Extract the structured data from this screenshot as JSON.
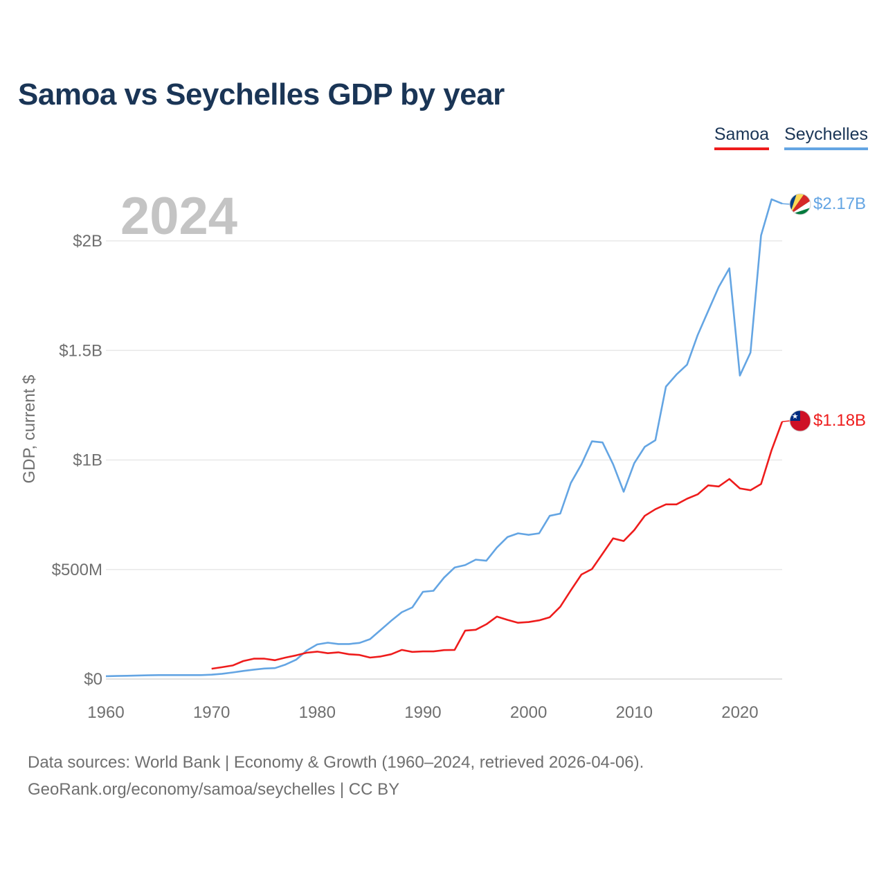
{
  "title": "Samoa vs Seychelles GDP by year",
  "legend": {
    "samoa_label": "Samoa",
    "seychelles_label": "Seychelles"
  },
  "source": {
    "line1": "Data sources: World Bank | Economy & Growth (1960–2024, retrieved 2026-04-06).",
    "line2": "GeoRank.org/economy/samoa/seychelles | CC BY"
  },
  "chart_data": {
    "type": "line",
    "title": "Samoa vs Seychelles GDP by year",
    "watermark_year": "2024",
    "xlabel": "",
    "ylabel": "GDP, current $",
    "xlim": [
      1960,
      2024
    ],
    "ylim": [
      0,
      2200000000
    ],
    "x_ticks": [
      1960,
      1970,
      1980,
      1990,
      2000,
      2010,
      2020
    ],
    "x_tick_labels": [
      "1960",
      "1970",
      "1980",
      "1990",
      "2000",
      "2010",
      "2020"
    ],
    "y_ticks": [
      0,
      500000000,
      1000000000,
      1500000000,
      2000000000
    ],
    "y_tick_labels": [
      "$0",
      "$500M",
      "$1B",
      "$1.5B",
      "$2B"
    ],
    "grid": true,
    "legend_position": "top-right",
    "series": [
      {
        "name": "Samoa",
        "color": "#ee1c1c",
        "end_label": "$1.18B",
        "flag_icon": "samoa-flag-icon",
        "x": [
          1970,
          1971,
          1972,
          1973,
          1974,
          1975,
          1976,
          1977,
          1978,
          1979,
          1980,
          1981,
          1982,
          1983,
          1984,
          1985,
          1986,
          1987,
          1988,
          1989,
          1990,
          1991,
          1992,
          1993,
          1994,
          1995,
          1996,
          1997,
          1998,
          1999,
          2000,
          2001,
          2002,
          2003,
          2004,
          2005,
          2006,
          2007,
          2008,
          2009,
          2010,
          2011,
          2012,
          2013,
          2014,
          2015,
          2016,
          2017,
          2018,
          2019,
          2020,
          2021,
          2022,
          2023,
          2024
        ],
        "values": [
          47000000,
          54000000,
          62000000,
          82000000,
          93000000,
          93000000,
          86000000,
          98000000,
          108000000,
          120000000,
          125000000,
          118000000,
          122000000,
          113000000,
          110000000,
          98000000,
          103000000,
          113000000,
          133000000,
          124000000,
          126000000,
          126000000,
          132000000,
          133000000,
          221000000,
          225000000,
          250000000,
          285000000,
          270000000,
          257000000,
          260000000,
          268000000,
          282000000,
          330000000,
          405000000,
          477000000,
          502000000,
          572000000,
          642000000,
          630000000,
          680000000,
          745000000,
          775000000,
          797000000,
          797000000,
          823000000,
          843000000,
          884000000,
          879000000,
          913000000,
          870000000,
          862000000,
          890000000,
          1045000000,
          1175000000
        ]
      },
      {
        "name": "Seychelles",
        "color": "#64a5e3",
        "end_label": "$2.17B",
        "flag_icon": "seychelles-flag-icon",
        "x": [
          1960,
          1961,
          1962,
          1963,
          1964,
          1965,
          1966,
          1967,
          1968,
          1969,
          1970,
          1971,
          1972,
          1973,
          1974,
          1975,
          1976,
          1977,
          1978,
          1979,
          1980,
          1981,
          1982,
          1983,
          1984,
          1985,
          1986,
          1987,
          1988,
          1989,
          1990,
          1991,
          1992,
          1993,
          1994,
          1995,
          1996,
          1997,
          1998,
          1999,
          2000,
          2001,
          2002,
          2003,
          2004,
          2005,
          2006,
          2007,
          2008,
          2009,
          2010,
          2011,
          2012,
          2013,
          2014,
          2015,
          2016,
          2017,
          2018,
          2019,
          2020,
          2021,
          2022,
          2023,
          2024
        ],
        "values": [
          13000000,
          14000000,
          15000000,
          16000000,
          17000000,
          18000000,
          18000000,
          18000000,
          18000000,
          18000000,
          20000000,
          24000000,
          30000000,
          37000000,
          43000000,
          48000000,
          50000000,
          66000000,
          88000000,
          130000000,
          158000000,
          166000000,
          160000000,
          160000000,
          165000000,
          182000000,
          224000000,
          266000000,
          305000000,
          327000000,
          398000000,
          403000000,
          463000000,
          509000000,
          520000000,
          545000000,
          540000000,
          600000000,
          648000000,
          665000000,
          658000000,
          665000000,
          745000000,
          755000000,
          895000000,
          980000000,
          1085000000,
          1080000000,
          980000000,
          855000000,
          985000000,
          1060000000,
          1090000000,
          1335000000,
          1390000000,
          1435000000,
          1570000000,
          1680000000,
          1790000000,
          1875000000,
          1385000000,
          1490000000,
          2025000000,
          2190000000,
          2170000000
        ]
      }
    ]
  }
}
